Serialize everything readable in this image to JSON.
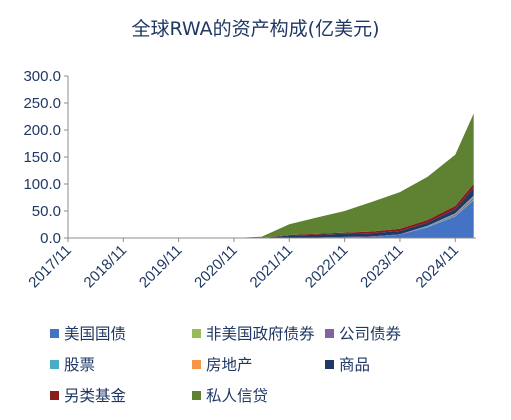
{
  "chart_data": {
    "type": "area",
    "title": "全球RWA的资产构成(亿美元)",
    "xlabel": "",
    "ylabel": "",
    "ylim": [
      0,
      300
    ],
    "yticks": [
      "0.0",
      "50.0",
      "100.0",
      "150.0",
      "200.0",
      "250.0",
      "300.0"
    ],
    "xticks": [
      "2017/11",
      "2018/11",
      "2019/11",
      "2020/11",
      "2021/11",
      "2022/11",
      "2023/11",
      "2024/11"
    ],
    "legend_position": "bottom",
    "grid": false,
    "x": [
      "2017/11",
      "2018/11",
      "2019/11",
      "2020/11",
      "2021/05",
      "2021/11",
      "2022/05",
      "2022/11",
      "2023/05",
      "2023/11",
      "2024/05",
      "2024/11",
      "2025/03"
    ],
    "series": [
      {
        "name": "美国国债",
        "color": "#4472c4",
        "values": [
          0,
          0,
          0,
          0,
          0,
          0,
          0,
          1,
          2,
          6,
          20,
          40,
          70
        ]
      },
      {
        "name": "非美国政府债券",
        "color": "#9bbb59",
        "values": [
          0,
          0,
          0,
          0,
          0,
          0,
          0,
          0,
          0,
          0,
          0.5,
          1,
          1.5
        ]
      },
      {
        "name": "公司债券",
        "color": "#8064a2",
        "values": [
          0,
          0,
          0,
          0,
          0,
          0.5,
          1,
          1,
          1,
          1,
          1,
          2,
          3
        ]
      },
      {
        "name": "股票",
        "color": "#4bacc6",
        "values": [
          0,
          0,
          0,
          0,
          0,
          0,
          0,
          0,
          0,
          0,
          1,
          2,
          3
        ]
      },
      {
        "name": "房地产",
        "color": "#f79646",
        "values": [
          0,
          0,
          0,
          0,
          0,
          0,
          0,
          0,
          0,
          0,
          0,
          0.5,
          1
        ]
      },
      {
        "name": "商品",
        "color": "#1f3864",
        "values": [
          0,
          0,
          0,
          0,
          0.5,
          4,
          5,
          6,
          6,
          6,
          6,
          8,
          14
        ]
      },
      {
        "name": "另类基金",
        "color": "#8b1c1c",
        "values": [
          0,
          0,
          0,
          0,
          0,
          1,
          2,
          2,
          3,
          4,
          5,
          6,
          8
        ]
      },
      {
        "name": "私人信贷",
        "color": "#5e8232",
        "values": [
          0,
          0,
          0,
          0,
          2,
          20,
          30,
          40,
          55,
          68,
          80,
          95,
          130
        ]
      }
    ]
  }
}
